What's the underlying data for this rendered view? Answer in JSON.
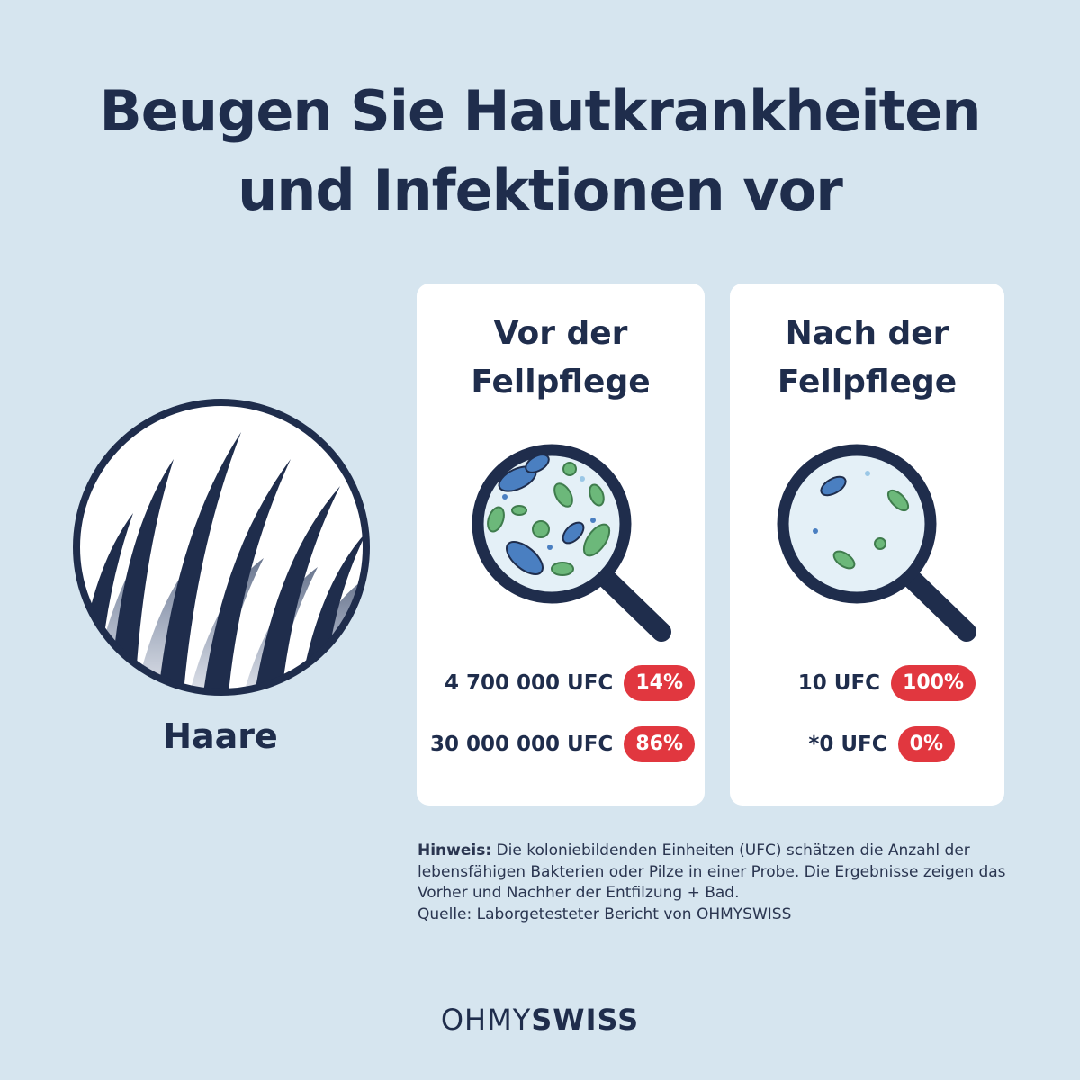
{
  "title_line1": "Beugen Sie Hautkrankheiten",
  "title_line2": "und Infektionen vor",
  "hair": {
    "label": "Haare",
    "icon": "hair-strands-icon"
  },
  "before": {
    "title_line1": "Vor der",
    "title_line2": "Fellpflege",
    "icon": "magnifier-many-bacteria-icon",
    "stats": [
      {
        "value": "4 700 000 UFC",
        "percent": "14%"
      },
      {
        "value": "30 000 000 UFC",
        "percent": "86%"
      }
    ]
  },
  "after": {
    "title_line1": "Nach der",
    "title_line2": "Fellpflege",
    "icon": "magnifier-few-bacteria-icon",
    "stats": [
      {
        "value": "10 UFC",
        "percent": "100%"
      },
      {
        "value": "*0 UFC",
        "percent": "0%"
      }
    ]
  },
  "note": {
    "label": "Hinweis:",
    "text": " Die koloniebildenden Einheiten (UFC) schätzen die Anzahl der lebensfähigen Bakterien oder Pilze in einer Probe. Die Ergebnisse zeigen das Vorher und Nachher der Entfilzung + Bad.",
    "source": "Quelle: Laborgetesteter Bericht von OHMYSWISS"
  },
  "brand": {
    "light": "OHMY",
    "bold": "SWISS"
  },
  "colors": {
    "background": "#d6e5ef",
    "navy": "#1f2d4c",
    "badge": "#e1373f",
    "bacteria_blue": "#4a7fc1",
    "bacteria_green": "#6cb87a"
  }
}
